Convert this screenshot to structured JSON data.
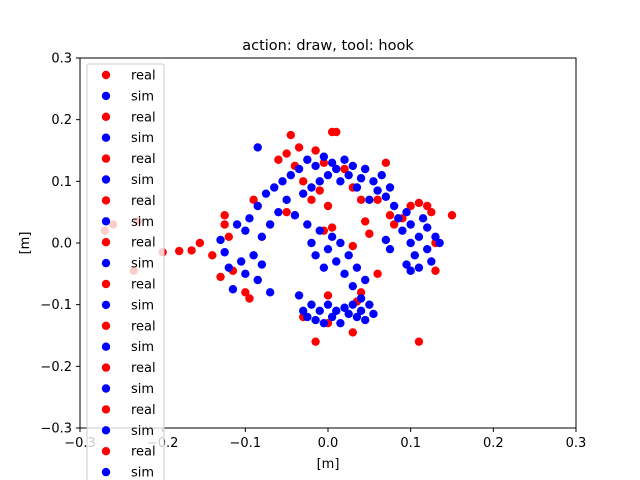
{
  "chart_data": {
    "type": "scatter",
    "title": "action: draw, tool: hook",
    "xlabel": "[m]",
    "ylabel": "[m]",
    "xlim": [
      -0.3,
      0.3
    ],
    "ylim": [
      -0.3,
      0.3
    ],
    "xticks": [
      "−0.3",
      "−0.2",
      "−0.1",
      "0.0",
      "0.1",
      "0.2",
      "0.3"
    ],
    "yticks": [
      "−0.3",
      "−0.2",
      "−0.1",
      "0.0",
      "0.1",
      "0.2",
      "0.3"
    ],
    "grid": false,
    "legend_position": "upper-left",
    "legend": [
      "real",
      "sim",
      "real",
      "sim",
      "real",
      "sim",
      "real",
      "sim",
      "real",
      "sim",
      "real",
      "sim",
      "real",
      "sim",
      "real",
      "sim",
      "real",
      "sim",
      "real",
      "sim"
    ],
    "colors": {
      "real": "#ff0000",
      "sim": "#0000ff"
    },
    "series": [
      {
        "name": "real",
        "color": "#ff0000",
        "points": [
          [
            -0.27,
            0.02
          ],
          [
            -0.26,
            0.03
          ],
          [
            -0.23,
            0.035
          ],
          [
            -0.235,
            -0.045
          ],
          [
            -0.2,
            -0.015
          ],
          [
            -0.18,
            -0.013
          ],
          [
            -0.165,
            -0.012
          ],
          [
            -0.155,
            0.0
          ],
          [
            -0.14,
            -0.02
          ],
          [
            -0.13,
            -0.055
          ],
          [
            -0.125,
            0.045
          ],
          [
            -0.125,
            0.03
          ],
          [
            -0.12,
            0.01
          ],
          [
            -0.115,
            -0.045
          ],
          [
            -0.1,
            -0.08
          ],
          [
            -0.095,
            -0.09
          ],
          [
            -0.09,
            0.07
          ],
          [
            -0.06,
            0.135
          ],
          [
            -0.05,
            0.145
          ],
          [
            -0.045,
            0.175
          ],
          [
            -0.04,
            0.125
          ],
          [
            -0.035,
            0.155
          ],
          [
            -0.03,
            0.1
          ],
          [
            -0.02,
            0.07
          ],
          [
            -0.015,
            0.15
          ],
          [
            -0.01,
            0.085
          ],
          [
            -0.005,
            0.13
          ],
          [
            0.0,
            0.06
          ],
          [
            0.005,
            0.18
          ],
          [
            0.01,
            0.18
          ],
          [
            0.02,
            0.12
          ],
          [
            0.03,
            0.09
          ],
          [
            0.04,
            0.07
          ],
          [
            0.045,
            0.035
          ],
          [
            0.05,
            0.015
          ],
          [
            0.06,
            0.07
          ],
          [
            0.07,
            0.13
          ],
          [
            0.075,
            0.045
          ],
          [
            0.08,
            0.03
          ],
          [
            0.09,
            0.04
          ],
          [
            0.1,
            0.06
          ],
          [
            0.11,
            0.065
          ],
          [
            0.12,
            0.06
          ],
          [
            0.125,
            0.05
          ],
          [
            0.13,
            0.0
          ],
          [
            0.13,
            -0.045
          ],
          [
            0.15,
            0.045
          ],
          [
            0.11,
            -0.16
          ],
          [
            -0.015,
            -0.16
          ],
          [
            0.03,
            -0.145
          ],
          [
            0.035,
            -0.095
          ],
          [
            0.04,
            -0.08
          ],
          [
            -0.03,
            -0.12
          ],
          [
            0.0,
            -0.13
          ],
          [
            -0.005,
            0.02
          ],
          [
            0.005,
            0.025
          ],
          [
            0.03,
            -0.005
          ],
          [
            0.0,
            -0.085
          ],
          [
            -0.05,
            0.05
          ],
          [
            0.06,
            -0.05
          ]
        ]
      },
      {
        "name": "sim",
        "color": "#0000ff",
        "points": [
          [
            -0.085,
            0.155
          ],
          [
            -0.13,
            0.005
          ],
          [
            -0.125,
            -0.015
          ],
          [
            -0.12,
            -0.04
          ],
          [
            -0.115,
            -0.075
          ],
          [
            -0.11,
            0.03
          ],
          [
            -0.105,
            -0.03
          ],
          [
            -0.1,
            0.02
          ],
          [
            -0.1,
            -0.05
          ],
          [
            -0.095,
            0.04
          ],
          [
            -0.09,
            -0.02
          ],
          [
            -0.085,
            0.06
          ],
          [
            -0.085,
            -0.06
          ],
          [
            -0.08,
            0.01
          ],
          [
            -0.075,
            0.08
          ],
          [
            -0.07,
            0.03
          ],
          [
            -0.065,
            0.09
          ],
          [
            -0.06,
            0.05
          ],
          [
            -0.055,
            0.1
          ],
          [
            -0.05,
            0.07
          ],
          [
            -0.045,
            0.11
          ],
          [
            -0.04,
            0.045
          ],
          [
            -0.035,
            0.12
          ],
          [
            -0.03,
            0.08
          ],
          [
            -0.025,
            0.135
          ],
          [
            -0.02,
            0.09
          ],
          [
            -0.015,
            0.125
          ],
          [
            -0.01,
            0.1
          ],
          [
            -0.005,
            0.14
          ],
          [
            0.0,
            0.11
          ],
          [
            0.005,
            0.13
          ],
          [
            0.01,
            0.12
          ],
          [
            0.015,
            0.1
          ],
          [
            0.02,
            0.135
          ],
          [
            0.025,
            0.11
          ],
          [
            0.03,
            0.125
          ],
          [
            0.035,
            0.09
          ],
          [
            0.04,
            0.105
          ],
          [
            0.045,
            0.12
          ],
          [
            0.05,
            0.07
          ],
          [
            0.055,
            0.1
          ],
          [
            0.06,
            0.085
          ],
          [
            0.065,
            0.11
          ],
          [
            0.07,
            0.075
          ],
          [
            0.075,
            0.09
          ],
          [
            0.08,
            0.06
          ],
          [
            0.085,
            0.04
          ],
          [
            0.09,
            0.02
          ],
          [
            0.095,
            0.05
          ],
          [
            0.1,
            0.0
          ],
          [
            0.1,
            0.03
          ],
          [
            0.105,
            -0.02
          ],
          [
            0.11,
            0.01
          ],
          [
            0.11,
            -0.04
          ],
          [
            0.115,
            0.04
          ],
          [
            0.12,
            -0.01
          ],
          [
            0.12,
            0.025
          ],
          [
            0.125,
            -0.03
          ],
          [
            0.13,
            0.01
          ],
          [
            0.135,
            0.0
          ],
          [
            -0.02,
            0.0
          ],
          [
            -0.015,
            -0.02
          ],
          [
            -0.01,
            0.02
          ],
          [
            -0.005,
            -0.04
          ],
          [
            0.0,
            -0.01
          ],
          [
            0.005,
            0.01
          ],
          [
            0.01,
            -0.03
          ],
          [
            0.015,
            0.0
          ],
          [
            0.02,
            -0.05
          ],
          [
            0.025,
            -0.02
          ],
          [
            0.03,
            -0.07
          ],
          [
            0.035,
            -0.04
          ],
          [
            0.04,
            -0.09
          ],
          [
            0.045,
            -0.06
          ],
          [
            -0.025,
            0.03
          ],
          [
            -0.03,
            -0.11
          ],
          [
            -0.025,
            -0.12
          ],
          [
            -0.02,
            -0.1
          ],
          [
            -0.015,
            -0.125
          ],
          [
            -0.01,
            -0.11
          ],
          [
            -0.005,
            -0.13
          ],
          [
            0.0,
            -0.1
          ],
          [
            0.005,
            -0.12
          ],
          [
            0.01,
            -0.11
          ],
          [
            0.015,
            -0.13
          ],
          [
            0.02,
            -0.105
          ],
          [
            0.025,
            -0.115
          ],
          [
            0.03,
            -0.1
          ],
          [
            0.035,
            -0.12
          ],
          [
            0.04,
            -0.11
          ],
          [
            0.045,
            -0.125
          ],
          [
            0.05,
            -0.1
          ],
          [
            0.055,
            -0.115
          ],
          [
            -0.07,
            -0.08
          ],
          [
            -0.035,
            -0.085
          ],
          [
            0.07,
            0.005
          ],
          [
            0.075,
            -0.01
          ],
          [
            -0.08,
            -0.035
          ],
          [
            0.095,
            -0.035
          ],
          [
            0.1,
            -0.045
          ]
        ]
      }
    ]
  }
}
